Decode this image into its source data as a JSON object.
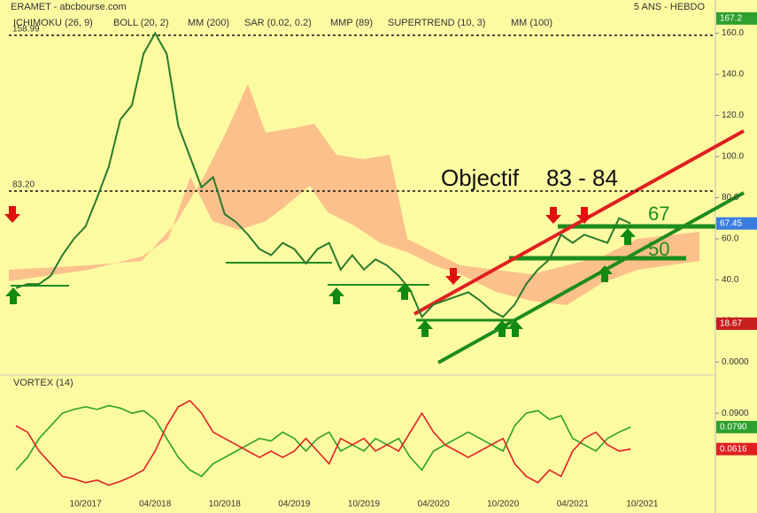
{
  "header": {
    "title": "ERAMET - abcbourse.com",
    "period": "5 ANS - HEBDO"
  },
  "legend": [
    {
      "name": "ICHIMOKU (26, 9)",
      "color": "#555555"
    },
    {
      "name": "BOLL (20, 2)",
      "color": "#7fb2e0"
    },
    {
      "name": "MM (200)",
      "color": "#0000cc"
    },
    {
      "name": "SAR (0.02, 0.2)",
      "color": "#cc0000"
    },
    {
      "name": "MMP (89)",
      "color": "#dd0000"
    },
    {
      "name": "SUPERTREND (10, 3)",
      "color": "#cc0000"
    },
    {
      "name": "MM (100)",
      "color": "#00cc00"
    }
  ],
  "chart_data": [
    {
      "type": "line",
      "x": [
        "04/2017",
        "05/2017",
        "06/2017",
        "07/2017",
        "08/2017",
        "09/2017",
        "10/2017",
        "11/2017",
        "12/2017",
        "01/2018",
        "02/2018",
        "03/2018",
        "04/2018",
        "05/2018",
        "06/2018",
        "07/2018",
        "08/2018",
        "09/2018",
        "10/2018",
        "11/2018",
        "12/2018",
        "01/2019",
        "02/2019",
        "03/2019",
        "04/2019",
        "05/2019",
        "06/2019",
        "07/2019",
        "08/2019",
        "09/2019",
        "10/2019",
        "11/2019",
        "12/2019",
        "01/2020",
        "02/2020",
        "03/2020",
        "04/2020",
        "05/2020",
        "06/2020",
        "07/2020",
        "08/2020",
        "09/2020",
        "10/2020",
        "11/2020",
        "12/2020",
        "01/2021",
        "02/2021",
        "03/2021",
        "04/2021",
        "05/2021",
        "06/2021",
        "07/2021",
        "08/2021",
        "09/2021"
      ],
      "series": [
        {
          "color": "#2a7a2a",
          "values": [
            36,
            38,
            38,
            42,
            52,
            60,
            66,
            80,
            95,
            118,
            125,
            150,
            160,
            150,
            115,
            100,
            85,
            90,
            72,
            68,
            62,
            55,
            52,
            58,
            55,
            48,
            55,
            58,
            45,
            52,
            45,
            50,
            47,
            42,
            35,
            22,
            28,
            30,
            32,
            34,
            30,
            25,
            22,
            28,
            38,
            45,
            50,
            62,
            58,
            62,
            60,
            58,
            70,
            67.45
          ]
        }
      ],
      "xticks": [
        "10/2017",
        "04/2018",
        "10/2018",
        "04/2019",
        "10/2019",
        "04/2020",
        "10/2020",
        "04/2021",
        "10/2021"
      ],
      "ylim": [
        -5,
        168
      ],
      "yticks": [
        {
          "value": 0,
          "label": "0.0000"
        },
        {
          "value": 20,
          "label": "20.0"
        },
        {
          "value": 40,
          "label": "40.0"
        },
        {
          "value": 60,
          "label": "60.0"
        },
        {
          "value": 80,
          "label": "80.0"
        },
        {
          "value": 100,
          "label": "100.0"
        },
        {
          "value": 120,
          "label": "120.0"
        },
        {
          "value": 140,
          "label": "140.0"
        },
        {
          "value": 160,
          "label": "160.0"
        }
      ],
      "reference_lines": [
        {
          "value": 158.99,
          "label": "158.99"
        },
        {
          "value": 83.2,
          "label": "83.20"
        }
      ],
      "markers": [
        {
          "value": 167.2,
          "label": "167.2",
          "color": "#2ea02e"
        },
        {
          "value": 67.45,
          "label": "67.45",
          "color": "#3a7de0"
        },
        {
          "value": 18.67,
          "label": "18.67",
          "color": "#c81e1e"
        }
      ],
      "annotations": [
        "Objectif",
        "83 - 84",
        "67",
        "50"
      ]
    },
    {
      "type": "line",
      "title": "VORTEX (14)",
      "series": [
        {
          "color": "#2aa02a",
          "values": [
            0.045,
            0.055,
            0.07,
            0.08,
            0.09,
            0.093,
            0.095,
            0.093,
            0.096,
            0.094,
            0.09,
            0.092,
            0.085,
            0.07,
            0.055,
            0.045,
            0.04,
            0.05,
            0.055,
            0.06,
            0.065,
            0.07,
            0.068,
            0.075,
            0.07,
            0.06,
            0.07,
            0.075,
            0.06,
            0.065,
            0.06,
            0.07,
            0.065,
            0.07,
            0.055,
            0.045,
            0.06,
            0.065,
            0.07,
            0.075,
            0.07,
            0.065,
            0.06,
            0.08,
            0.09,
            0.092,
            0.085,
            0.088,
            0.07,
            0.065,
            0.06,
            0.07,
            0.075,
            0.079
          ]
        },
        {
          "color": "#e02020",
          "values": [
            0.08,
            0.075,
            0.06,
            0.05,
            0.04,
            0.038,
            0.035,
            0.037,
            0.033,
            0.036,
            0.04,
            0.045,
            0.06,
            0.08,
            0.095,
            0.1,
            0.09,
            0.075,
            0.07,
            0.065,
            0.06,
            0.055,
            0.06,
            0.055,
            0.06,
            0.07,
            0.06,
            0.05,
            0.07,
            0.065,
            0.07,
            0.06,
            0.065,
            0.06,
            0.075,
            0.09,
            0.075,
            0.065,
            0.06,
            0.055,
            0.06,
            0.065,
            0.07,
            0.05,
            0.04,
            0.035,
            0.045,
            0.04,
            0.06,
            0.07,
            0.075,
            0.065,
            0.06,
            0.0616
          ]
        }
      ],
      "ylim": [
        0.025,
        0.109
      ],
      "yticks": [
        {
          "value": 0.09,
          "label": "0.0900"
        }
      ],
      "markers": [
        {
          "value": 0.079,
          "label": "0.0790",
          "color": "#2ea02e"
        },
        {
          "value": 0.0616,
          "label": "0.0616",
          "color": "#e02020"
        }
      ]
    }
  ]
}
